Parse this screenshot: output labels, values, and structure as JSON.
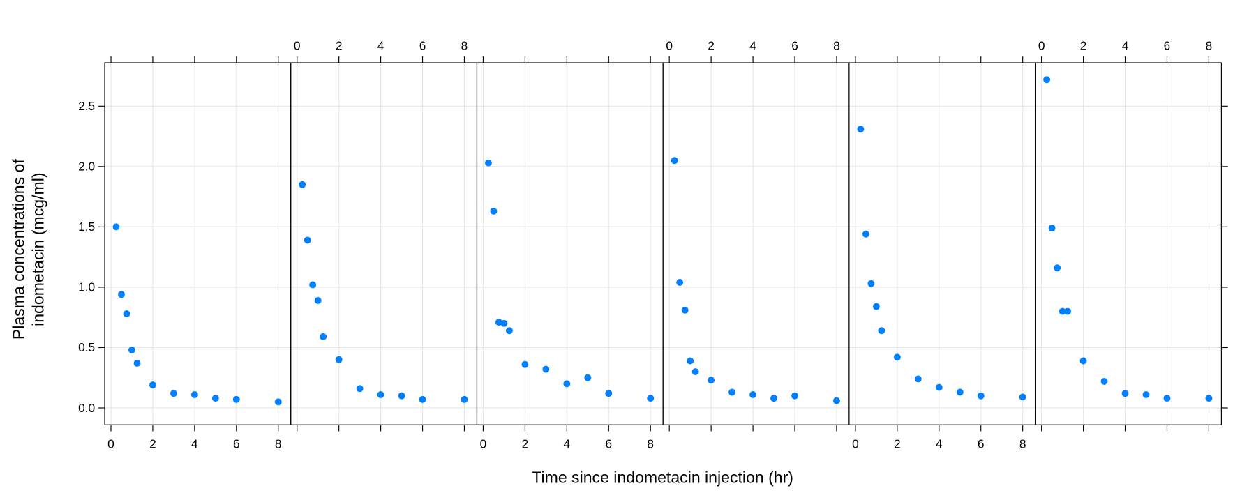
{
  "chart_data": {
    "type": "scatter",
    "layout": "6 panels side by side, shared y-axis",
    "xlabel": "Time since indometacin injection (hr)",
    "ylabel": [
      "Plasma concentrations of",
      "indometacin (mcg/ml)"
    ],
    "xlim": [
      -0.3,
      8.6
    ],
    "ylim": [
      -0.14,
      2.86
    ],
    "x_ticks": [
      0,
      2,
      4,
      6,
      8
    ],
    "y_ticks": [
      0.0,
      0.5,
      1.0,
      1.5,
      2.0,
      2.5
    ],
    "y_tick_labels": [
      "0.0",
      "0.5",
      "1.0",
      "1.5",
      "2.0",
      "2.5"
    ],
    "grid": true,
    "point_color": "#0080ff",
    "x": [
      0.25,
      0.5,
      0.75,
      1,
      1.25,
      2,
      3,
      4,
      5,
      6,
      8
    ],
    "series": [
      {
        "values": [
          1.5,
          0.94,
          0.78,
          0.48,
          0.37,
          0.19,
          0.12,
          0.11,
          0.08,
          0.07,
          0.05
        ]
      },
      {
        "values": [
          1.85,
          1.39,
          1.02,
          0.89,
          0.59,
          0.4,
          0.16,
          0.11,
          0.1,
          0.07,
          0.07
        ]
      },
      {
        "values": [
          2.03,
          1.63,
          0.71,
          0.7,
          0.64,
          0.36,
          0.32,
          0.2,
          0.25,
          0.12,
          0.08
        ]
      },
      {
        "values": [
          2.05,
          1.04,
          0.81,
          0.39,
          0.3,
          0.23,
          0.13,
          0.11,
          0.08,
          0.1,
          0.06
        ]
      },
      {
        "values": [
          2.31,
          1.44,
          1.03,
          0.84,
          0.64,
          0.42,
          0.24,
          0.17,
          0.13,
          0.1,
          0.09
        ]
      },
      {
        "values": [
          2.72,
          1.49,
          1.16,
          0.8,
          0.8,
          0.39,
          0.22,
          0.12,
          0.11,
          0.08,
          0.08
        ]
      }
    ]
  }
}
